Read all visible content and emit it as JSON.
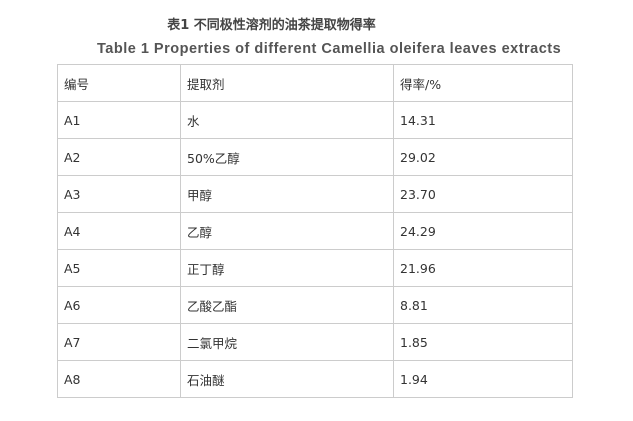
{
  "title_cn": "表1 不同极性溶剂的油茶提取物得率",
  "title_en": "Table 1 Properties of different Camellia oleifera leaves extracts",
  "headers": [
    "编号",
    "提取剂",
    "得率/%"
  ],
  "rows": [
    [
      "A1",
      "水",
      "14.31"
    ],
    [
      "A2",
      "50%乙醇",
      "29.02"
    ],
    [
      "A3",
      "甲醇",
      "23.70"
    ],
    [
      "A4",
      "乙醇",
      "24.29"
    ],
    [
      "A5",
      "正丁醇",
      "21.96"
    ],
    [
      "A6",
      "乙酸乙酯",
      "8.81"
    ],
    [
      "A7",
      "二氯甲烷",
      "1.85"
    ],
    [
      "A8",
      "石油醚",
      "1.94"
    ]
  ]
}
